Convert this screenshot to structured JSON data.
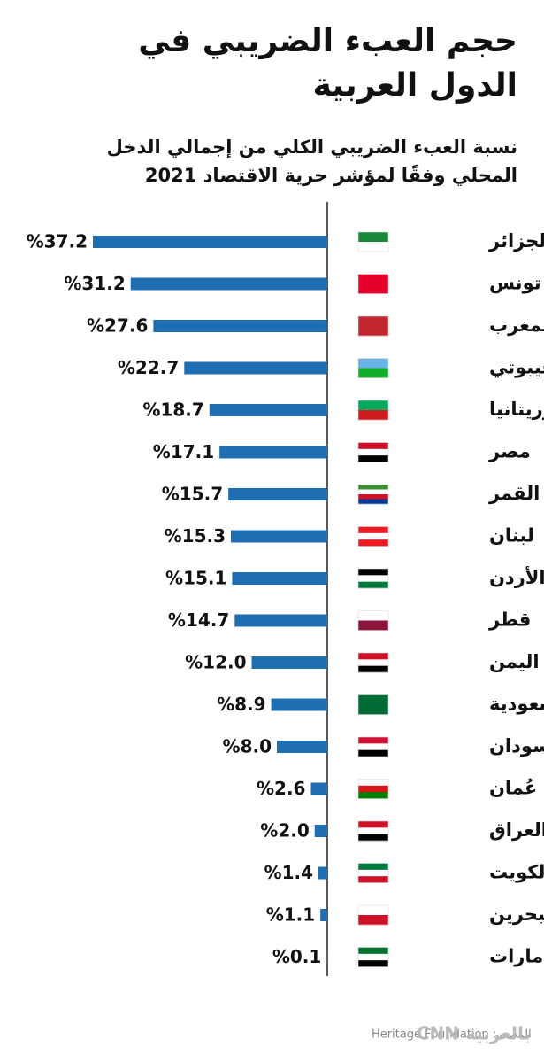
{
  "chart_data": {
    "type": "bar",
    "orientation": "horizontal",
    "title": "حجم العبء الضريبي في الدول العربية",
    "subtitle": "نسبة العبء الضريبي الكلي من إجمالي الدخل المحلي وفقًا لمؤشر حرية الاقتصاد 2021",
    "categories": [
      "الجزائر",
      "تونس",
      "المغرب",
      "جيبوتي",
      "موريتانيا",
      "مصر",
      "جزر القمر",
      "لبنان",
      "الأردن",
      "قطر",
      "اليمن",
      "السعودية",
      "السودان",
      "سلطنة عُمان",
      "العراق",
      "الكويت",
      "البحرين",
      "الإمارات"
    ],
    "values": [
      37.2,
      31.2,
      27.6,
      22.7,
      18.7,
      17.1,
      15.7,
      15.3,
      15.1,
      14.7,
      12.0,
      8.9,
      8.0,
      2.6,
      2.0,
      1.4,
      1.1,
      0.1
    ],
    "value_labels": [
      "%37.2",
      "%31.2",
      "%27.6",
      "%22.7",
      "%18.7",
      "%17.1",
      "%15.7",
      "%15.3",
      "%15.1",
      "%14.7",
      "%12.0",
      "%8.9",
      "%8.0",
      "%2.6",
      "%2.0",
      "%1.4",
      "%1.1",
      "%0.1"
    ],
    "color": "#1f6db3",
    "source": "المصدر: Heritage Foundation",
    "logo": "CNN بالعربية"
  }
}
